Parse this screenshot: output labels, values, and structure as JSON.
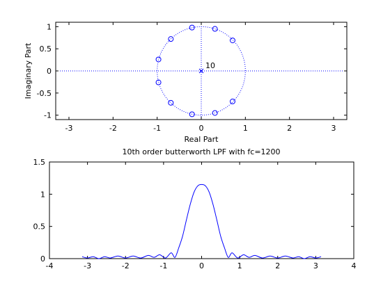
{
  "chart_data": [
    {
      "type": "scatter",
      "title": "",
      "xlabel": "Real Part",
      "ylabel": "Imaginary Part",
      "xlim": [
        -3.3,
        3.3
      ],
      "ylim": [
        -1.1,
        1.1
      ],
      "xticks": [
        "-3",
        "-2",
        "-1",
        "0",
        "1",
        "2",
        "3"
      ],
      "yticks": [
        "1",
        "0.5",
        "0",
        "-0.5",
        "-1"
      ],
      "unit_circle": true,
      "pole_multiplicity_label": "10",
      "poles": [
        {
          "x": 0,
          "y": 0
        }
      ],
      "zeros": [
        {
          "x": 0.31,
          "y": 0.95
        },
        {
          "x": -0.21,
          "y": 0.98
        },
        {
          "x": 0.71,
          "y": 0.69
        },
        {
          "x": -0.69,
          "y": 0.72
        },
        {
          "x": -0.97,
          "y": 0.26
        },
        {
          "x": -0.97,
          "y": -0.26
        },
        {
          "x": -0.69,
          "y": -0.72
        },
        {
          "x": -0.21,
          "y": -0.98
        },
        {
          "x": 0.31,
          "y": -0.95
        },
        {
          "x": 0.71,
          "y": -0.69
        }
      ],
      "grid": false,
      "color": "#0000ff"
    },
    {
      "type": "line",
      "title": "10th order butterworth LPF with fc=1200",
      "xlabel": "",
      "ylabel": "",
      "xlim": [
        -4,
        4
      ],
      "ylim": [
        0,
        1.5
      ],
      "xticks": [
        "-4",
        "-3",
        "-2",
        "-1",
        "0",
        "1",
        "2",
        "3",
        "4"
      ],
      "yticks": [
        "1.5",
        "1",
        "0.5",
        "0"
      ],
      "series": [
        {
          "color": "#0000ff",
          "x": [
            -3.14,
            -3.0,
            -2.85,
            -2.7,
            -2.55,
            -2.4,
            -2.2,
            -2.0,
            -1.8,
            -1.6,
            -1.4,
            -1.25,
            -1.1,
            -0.95,
            -0.8,
            -0.7,
            -0.6,
            -0.5,
            -0.4,
            -0.3,
            -0.2,
            -0.1,
            0,
            0.1,
            0.2,
            0.3,
            0.4,
            0.5,
            0.6,
            0.7,
            0.8,
            0.95,
            1.1,
            1.25,
            1.4,
            1.6,
            1.8,
            2.0,
            2.2,
            2.4,
            2.55,
            2.7,
            2.85,
            3.0,
            3.14
          ],
          "y": [
            0.03,
            0.01,
            0.03,
            0.0,
            0.03,
            0.01,
            0.04,
            0.01,
            0.04,
            0.01,
            0.05,
            0.02,
            0.06,
            0.01,
            0.09,
            0.02,
            0.17,
            0.35,
            0.6,
            0.84,
            1.03,
            1.13,
            1.15,
            1.13,
            1.03,
            0.84,
            0.6,
            0.35,
            0.17,
            0.02,
            0.09,
            0.01,
            0.06,
            0.02,
            0.05,
            0.01,
            0.04,
            0.01,
            0.04,
            0.01,
            0.03,
            0.0,
            0.03,
            0.01,
            0.03
          ]
        }
      ],
      "grid": false
    }
  ]
}
